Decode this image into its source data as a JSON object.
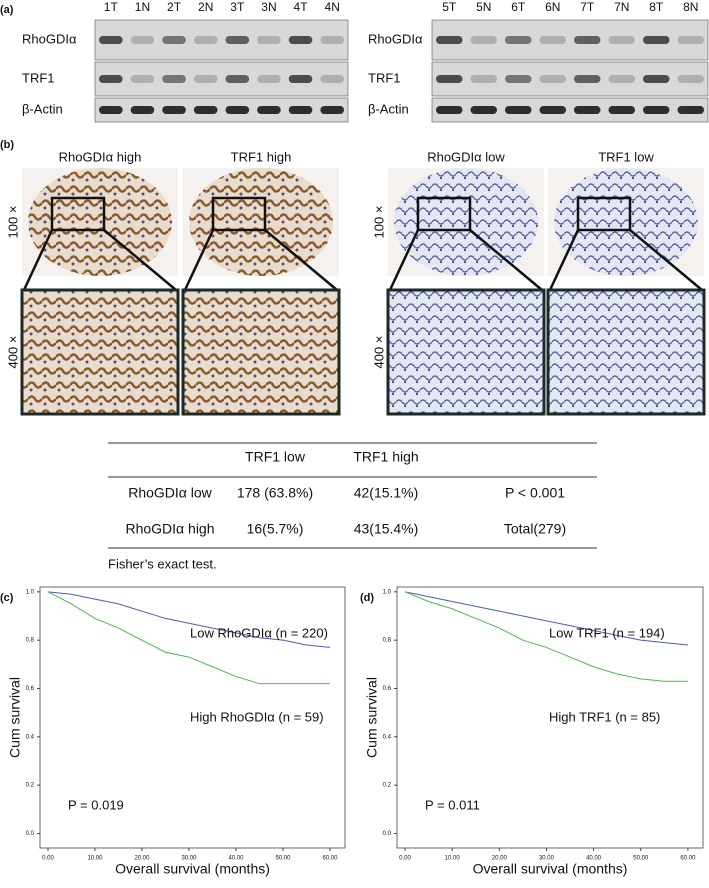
{
  "panel_a": {
    "letter": "(a)",
    "left_lanes": [
      "1T",
      "1N",
      "2T",
      "2N",
      "3T",
      "3N",
      "4T",
      "4N"
    ],
    "right_lanes": [
      "5T",
      "5N",
      "6T",
      "6N",
      "7T",
      "7N",
      "8T",
      "8N"
    ],
    "rows": [
      "RhoGDIα",
      "TRF1",
      "β-Actin"
    ]
  },
  "panel_b": {
    "letter": "(b)",
    "titles": [
      "RhoGDIα high",
      "TRF1 high",
      "RhoGDIα low",
      "TRF1 low"
    ],
    "magnifications": [
      "100 ×",
      "400 ×"
    ]
  },
  "table": {
    "columns": [
      "TRF1 low",
      "TRF1 high"
    ],
    "rows": [
      [
        "RhoGDIα low",
        "178 (63.8%)",
        "42(15.1%)",
        "P < 0.001"
      ],
      [
        "RhoGDIα high",
        "16(5.7%)",
        "43(15.4%)",
        "Total(279)"
      ]
    ],
    "footnote": "Fisher’s exact test."
  },
  "chart_data": [
    {
      "type": "line",
      "letter": "(c)",
      "x_label": "Overall survival (months)",
      "y_label": "Cum survival",
      "annotation": "P = 0.019",
      "x": [
        0,
        5,
        10,
        15,
        20,
        25,
        30,
        35,
        40,
        45,
        50,
        55,
        60
      ],
      "series": [
        {
          "name": "Low RhoGDIα (n = 220)",
          "color": "#4a5fb5",
          "values": [
            1.0,
            0.99,
            0.97,
            0.95,
            0.92,
            0.89,
            0.87,
            0.85,
            0.83,
            0.81,
            0.8,
            0.78,
            0.77
          ]
        },
        {
          "name": "High RhoGDIα (n = 59)",
          "color": "#4cbb4c",
          "values": [
            1.0,
            0.95,
            0.89,
            0.85,
            0.8,
            0.75,
            0.73,
            0.69,
            0.65,
            0.62,
            0.62,
            0.62,
            0.62
          ]
        }
      ],
      "xlim": [
        -1.7,
        63.2
      ],
      "ylim": [
        -0.06,
        1.02
      ],
      "xticks": [
        {
          "value": 0,
          "label": "0.00"
        },
        {
          "value": 10,
          "label": "10.00"
        },
        {
          "value": 20,
          "label": "20.00"
        },
        {
          "value": 30,
          "label": "30.00"
        },
        {
          "value": 40,
          "label": "40.00"
        },
        {
          "value": 50,
          "label": "50.00"
        },
        {
          "value": 60,
          "label": "60.00"
        }
      ],
      "yticks": [
        {
          "value": 0,
          "label": "0.0"
        },
        {
          "value": 0.2,
          "label": "0.2"
        },
        {
          "value": 0.4,
          "label": "0.4"
        },
        {
          "value": 0.6,
          "label": "0.6"
        },
        {
          "value": 0.8,
          "label": "0.8"
        },
        {
          "value": 1,
          "label": "1.0"
        }
      ]
    },
    {
      "type": "line",
      "letter": "(d)",
      "x_label": "Overall survival (months)",
      "y_label": "Cum survival",
      "annotation": "P = 0.011",
      "x": [
        0,
        5,
        10,
        15,
        20,
        25,
        30,
        35,
        40,
        45,
        50,
        55,
        60
      ],
      "series": [
        {
          "name": "Low TRF1 (n = 194)",
          "color": "#4a5fb5",
          "values": [
            1.0,
            0.98,
            0.96,
            0.94,
            0.92,
            0.9,
            0.88,
            0.86,
            0.84,
            0.82,
            0.8,
            0.79,
            0.78
          ]
        },
        {
          "name": "High TRF1 (n = 85)",
          "color": "#4cbb4c",
          "values": [
            1.0,
            0.96,
            0.93,
            0.89,
            0.85,
            0.8,
            0.77,
            0.73,
            0.69,
            0.66,
            0.64,
            0.63,
            0.63
          ]
        }
      ],
      "xlim": [
        -1.7,
        63.2
      ],
      "ylim": [
        -0.06,
        1.02
      ],
      "xticks": [
        {
          "value": 0,
          "label": "0.00"
        },
        {
          "value": 10,
          "label": "10.00"
        },
        {
          "value": 20,
          "label": "20.00"
        },
        {
          "value": 30,
          "label": "30.00"
        },
        {
          "value": 40,
          "label": "40.00"
        },
        {
          "value": 50,
          "label": "50.00"
        },
        {
          "value": 60,
          "label": "60.00"
        }
      ],
      "yticks": [
        {
          "value": 0,
          "label": "0.0"
        },
        {
          "value": 0.2,
          "label": "0.2"
        },
        {
          "value": 0.4,
          "label": "0.4"
        },
        {
          "value": 0.6,
          "label": "0.6"
        },
        {
          "value": 0.8,
          "label": "0.8"
        },
        {
          "value": 1,
          "label": "1.0"
        }
      ]
    }
  ]
}
